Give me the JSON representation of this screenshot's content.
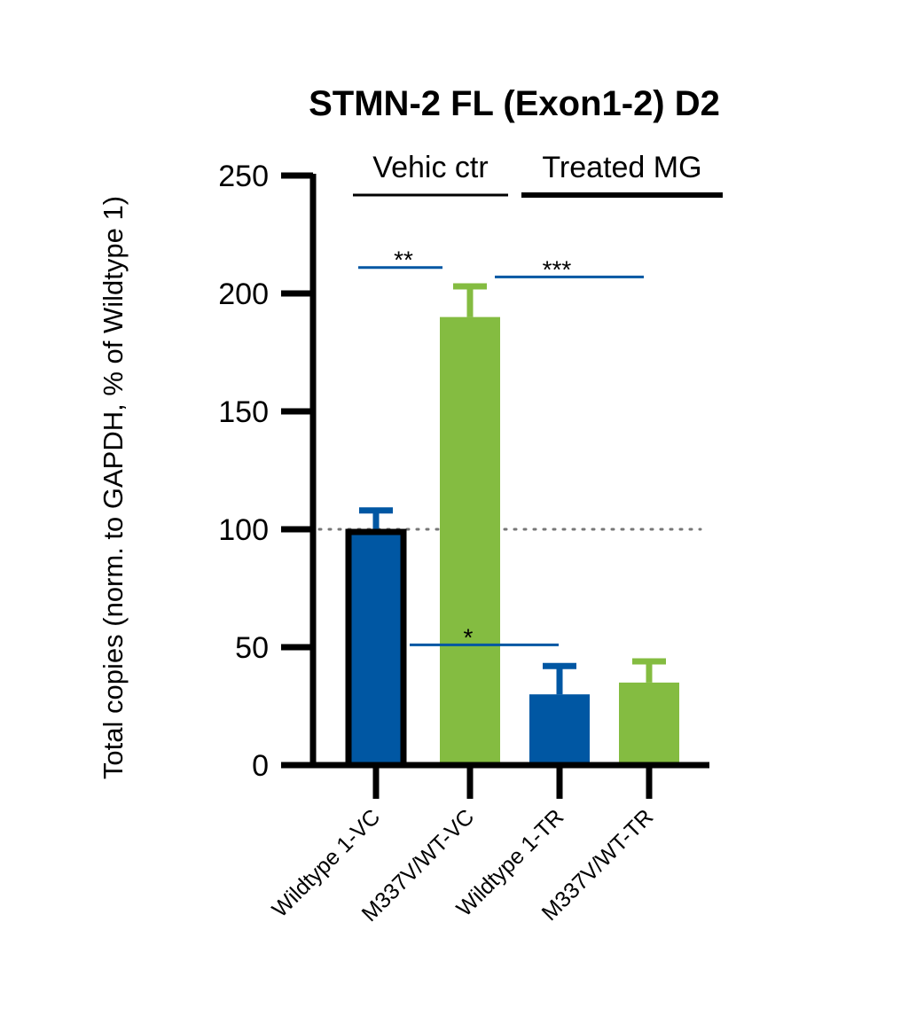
{
  "chart_data": {
    "type": "bar",
    "title": "STMN-2 FL (Exon1-2) D2",
    "xlabel": "",
    "ylabel": "Total copies (norm. to GAPDH, % of Wildtype 1)",
    "ylim": [
      0,
      250
    ],
    "yticks": [
      "0",
      "50",
      "100",
      "150",
      "200",
      "250"
    ],
    "grid": false,
    "reference_line": 100,
    "categories": [
      "Wildtype 1-VC",
      "M337V/WT-VC",
      "Wildtype 1-TR",
      "M337V/WT-TR"
    ],
    "values": [
      100,
      190,
      30,
      35
    ],
    "error_upper": [
      108,
      203,
      42,
      44
    ],
    "bar_colors": [
      "#0057a3",
      "#84bc41",
      "#0057a3",
      "#84bc41"
    ],
    "groups": [
      {
        "label": "Vehic ctr",
        "from": 0,
        "to": 1
      },
      {
        "label": "Treated MG",
        "from": 2,
        "to": 3
      }
    ],
    "significance": [
      {
        "label": "**",
        "from": 0,
        "to": 1,
        "level": 211
      },
      {
        "label": "***",
        "from": 1,
        "to": 3,
        "level": 207
      },
      {
        "label": "*",
        "from": 0,
        "to": 2,
        "level": 51
      }
    ],
    "annotation_color": "#0057a3"
  }
}
